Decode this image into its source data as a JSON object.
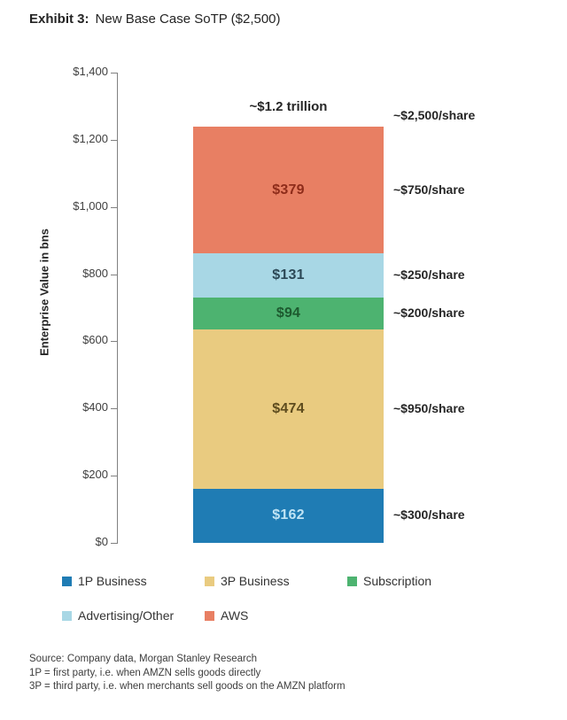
{
  "title": {
    "prefix": "Exhibit 3:",
    "text": "New Base Case SoTP ($2,500)"
  },
  "chart_data": {
    "type": "bar",
    "stacked": true,
    "ylabel": "Enterprise Value in bns",
    "ylim": [
      0,
      1400
    ],
    "ytick_step": 200,
    "ytick_labels": [
      "$0",
      "$200",
      "$400",
      "$600",
      "$800",
      "$1,000",
      "$1,200",
      "$1,400"
    ],
    "grid": false,
    "total_value": 1240,
    "total_label": "~$1.2 trillion",
    "total_share_label": "~$2,500/share",
    "segments": [
      {
        "name": "1P Business",
        "value": 162,
        "color": "#1f7cb4",
        "label": "$162",
        "label_color": "#bfe3f4",
        "share_label": "~$300/share"
      },
      {
        "name": "3P Business",
        "value": 474,
        "color": "#e9cb80",
        "label": "$474",
        "label_color": "#5e4c1e",
        "share_label": "~$950/share"
      },
      {
        "name": "Subscription",
        "value": 94,
        "color": "#4db370",
        "label": "$94",
        "label_color": "#1d5a2f",
        "share_label": "~$200/share"
      },
      {
        "name": "Advertising/Other",
        "value": 131,
        "color": "#a8d7e5",
        "label": "$131",
        "label_color": "#2c4856",
        "share_label": "~$250/share"
      },
      {
        "name": "AWS",
        "value": 379,
        "color": "#e87f63",
        "label": "$379",
        "label_color": "#8e2c1a",
        "share_label": "~$750/share"
      }
    ],
    "legend_position": "bottom",
    "legend_rows": [
      [
        "1P Business",
        "3P Business",
        "Subscription"
      ],
      [
        "Advertising/Other",
        "AWS"
      ]
    ]
  },
  "footer": {
    "source": "Source: Company data, Morgan Stanley Research",
    "note1": "1P = first party, i.e. when AMZN sells goods directly",
    "note2": "3P = third party, i.e. when merchants sell goods on the AMZN platform"
  }
}
